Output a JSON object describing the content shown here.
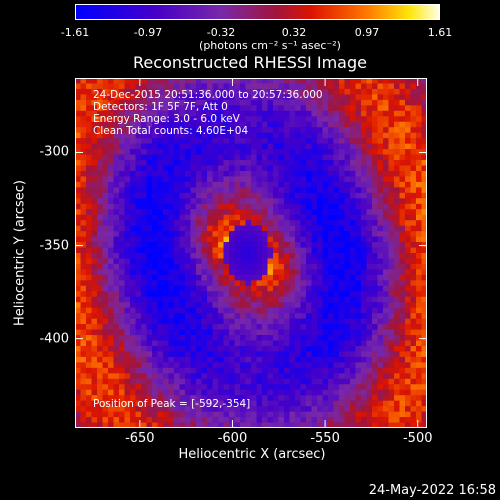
{
  "colorbar": {
    "ticks": [
      "-1.61",
      "-0.97",
      "-0.32",
      "0.32",
      "0.97",
      "1.61"
    ],
    "units": "(photons cm⁻² s⁻¹ asec⁻²)",
    "range": [
      -1.61,
      1.61
    ]
  },
  "chart_data": {
    "type": "heatmap",
    "title": "Reconstructed RHESSI Image",
    "xlabel": "Heliocentric X (arcsec)",
    "ylabel": "Heliocentric Y (arcsec)",
    "xlim": [
      -685,
      -495
    ],
    "ylim": [
      -448,
      -260
    ],
    "x_ticks": [
      "-650",
      "-600",
      "-550",
      "-500"
    ],
    "y_ticks": [
      "-300",
      "-350",
      "-400"
    ],
    "x_tick_values": [
      -650,
      -600,
      -550,
      -500
    ],
    "y_tick_values": [
      -300,
      -350,
      -400
    ],
    "peak": [
      -592,
      -354
    ],
    "annotations": {
      "time": "24-Dec-2015 20:51:36.000 to 20:57:36.000",
      "detectors": "Detectors: 1F 5F 7F, Att 0",
      "energy": "Energy Range: 3.0 - 6.0 keV",
      "method": "Clean     Total counts: 4.60E+04",
      "peak_text": "Position of Peak = [-592,-354]"
    }
  },
  "footer": {
    "date": "24-May-2022 16:58"
  }
}
